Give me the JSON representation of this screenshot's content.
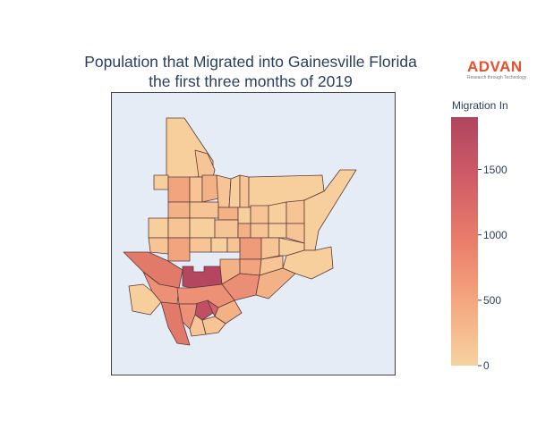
{
  "title": {
    "line1": "Population that Migrated into Gainesville Florida",
    "line2": "the first three months of 2019"
  },
  "logo": {
    "word": "ADVAN",
    "tagline": "Research through Technology",
    "color": "#e8502b"
  },
  "colorbar": {
    "title": "Migration In",
    "min": 0,
    "max": 1900,
    "ticks": [
      "0",
      "500",
      "1000",
      "1500"
    ],
    "tick_values": [
      0,
      500,
      1000,
      1500
    ],
    "colorscale": [
      "#f6d2a0",
      "#f4a87f",
      "#ea7d6b",
      "#d05d67",
      "#b0455f"
    ]
  },
  "map_background": "#e5ecf6",
  "region_border_color": "#5a3a3a"
}
